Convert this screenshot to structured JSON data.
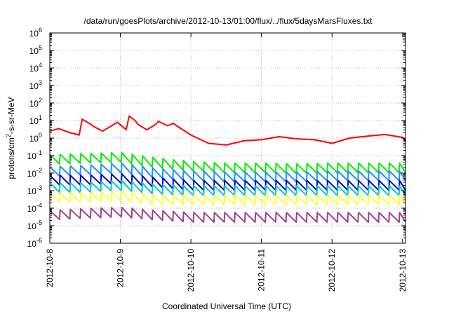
{
  "chart_data": {
    "type": "line",
    "title": "/data/run/goesPlots/archive/2012-10-13/01:00/flux/../flux/5daysMarsFluxes.txt",
    "xlabel": "Coordinated Universal Time (UTC)",
    "ylabel_base": "protons/cm",
    "ylabel_sup": "2",
    "ylabel_rest": "-s-sr-MeV",
    "y_scale": "log",
    "ylim": [
      1e-06,
      1000000.0
    ],
    "y_ticks": [
      {
        "base": "10",
        "exp": "-6"
      },
      {
        "base": "10",
        "exp": "-5"
      },
      {
        "base": "10",
        "exp": "-4"
      },
      {
        "base": "10",
        "exp": "-3"
      },
      {
        "base": "10",
        "exp": "-2"
      },
      {
        "base": "10",
        "exp": "-1"
      },
      {
        "base": "10",
        "exp": "0"
      },
      {
        "base": "10",
        "exp": "1"
      },
      {
        "base": "10",
        "exp": "2"
      },
      {
        "base": "10",
        "exp": "3"
      },
      {
        "base": "10",
        "exp": "4"
      },
      {
        "base": "10",
        "exp": "5"
      },
      {
        "base": "10",
        "exp": "6"
      }
    ],
    "xlim": [
      "2012-10-08",
      "2012-10-13 01:00"
    ],
    "x_ticks": [
      "2012-10-8",
      "2012-10-9",
      "2012-10-10",
      "2012-10-11",
      "2012-10-12",
      "2012-10-13"
    ],
    "grid": true,
    "series": [
      {
        "color": "#ff0000",
        "x": [
          "2012-10-08 00:00",
          "2012-10-08 03:00",
          "2012-10-08 07:00",
          "2012-10-08 10:00",
          "2012-10-08 11:00",
          "2012-10-08 14:00",
          "2012-10-08 15:00",
          "2012-10-08 18:00",
          "2012-10-08 21:00",
          "2012-10-08 23:00",
          "2012-10-09 02:00",
          "2012-10-09 03:00",
          "2012-10-09 05:00",
          "2012-10-09 06:00",
          "2012-10-09 09:00",
          "2012-10-09 12:00",
          "2012-10-09 13:00",
          "2012-10-09 16:00",
          "2012-10-09 18:00",
          "2012-10-09 20:00",
          "2012-10-10 00:00",
          "2012-10-10 06:00",
          "2012-10-10 12:00",
          "2012-10-10 18:00",
          "2012-10-11 00:00",
          "2012-10-11 06:00",
          "2012-10-11 12:00",
          "2012-10-11 18:00",
          "2012-10-12 00:00",
          "2012-10-12 06:00",
          "2012-10-12 12:00",
          "2012-10-12 18:00",
          "2012-10-13 00:00",
          "2012-10-13 01:00"
        ],
        "y": [
          2.5,
          3.5,
          2.0,
          1.5,
          12,
          6,
          4.5,
          2.5,
          5,
          8,
          3,
          18,
          10,
          6,
          3,
          6,
          9,
          5,
          7,
          4,
          1.5,
          0.5,
          0.4,
          0.7,
          0.8,
          1.2,
          0.9,
          0.8,
          0.5,
          1.0,
          1.3,
          1.6,
          1.1,
          0.7
        ]
      },
      {
        "color": "#00ee00",
        "x": [
          "2012-10-08 00:00",
          "2012-10-08 12:00",
          "2012-10-09 00:00",
          "2012-10-09 12:00",
          "2012-10-10 00:00",
          "2012-10-10 12:00",
          "2012-10-11 00:00",
          "2012-10-11 12:00",
          "2012-10-12 00:00",
          "2012-10-12 12:00",
          "2012-10-13 01:00"
        ],
        "y": [
          0.06,
          0.07,
          0.08,
          0.04,
          0.025,
          0.02,
          0.02,
          0.018,
          0.02,
          0.02,
          0.02
        ]
      },
      {
        "color": "#1e90ff",
        "x": [
          "2012-10-08 00:00",
          "2012-10-08 12:00",
          "2012-10-09 00:00",
          "2012-10-09 12:00",
          "2012-10-10 00:00",
          "2012-10-10 12:00",
          "2012-10-11 00:00",
          "2012-10-11 12:00",
          "2012-10-12 00:00",
          "2012-10-12 12:00",
          "2012-10-13 01:00"
        ],
        "y": [
          0.012,
          0.015,
          0.02,
          0.01,
          0.007,
          0.006,
          0.006,
          0.006,
          0.007,
          0.007,
          0.007
        ]
      },
      {
        "color": "#0000cc",
        "x": [
          "2012-10-08 00:00",
          "2012-10-08 12:00",
          "2012-10-09 00:00",
          "2012-10-09 12:00",
          "2012-10-10 00:00",
          "2012-10-10 12:00",
          "2012-10-11 00:00",
          "2012-10-11 12:00",
          "2012-10-12 00:00",
          "2012-10-12 12:00",
          "2012-10-13 01:00"
        ],
        "y": [
          0.004,
          0.004,
          0.005,
          0.003,
          0.002,
          0.002,
          0.002,
          0.002,
          0.002,
          0.002,
          0.002
        ]
      },
      {
        "color": "#00c8c8",
        "x": [
          "2012-10-08 00:00",
          "2012-10-08 12:00",
          "2012-10-09 00:00",
          "2012-10-09 12:00",
          "2012-10-10 00:00",
          "2012-10-10 12:00",
          "2012-10-11 00:00",
          "2012-10-11 12:00",
          "2012-10-12 00:00",
          "2012-10-12 12:00",
          "2012-10-13 01:00"
        ],
        "y": [
          0.0015,
          0.0015,
          0.002,
          0.0012,
          0.001,
          0.001,
          0.001,
          0.001,
          0.001,
          0.001,
          0.001
        ]
      },
      {
        "color": "#ffff33",
        "x": [
          "2012-10-08 00:00",
          "2012-10-08 12:00",
          "2012-10-09 00:00",
          "2012-10-09 12:00",
          "2012-10-10 00:00",
          "2012-10-10 12:00",
          "2012-10-11 00:00",
          "2012-10-11 12:00",
          "2012-10-12 00:00",
          "2012-10-12 12:00",
          "2012-10-13 01:00"
        ],
        "y": [
          0.0004,
          0.0004,
          0.0005,
          0.0003,
          0.0003,
          0.0003,
          0.0003,
          0.0003,
          0.0003,
          0.0003,
          0.0003
        ]
      },
      {
        "color": "#a0408a",
        "x": [
          "2012-10-08 00:00",
          "2012-10-08 12:00",
          "2012-10-09 00:00",
          "2012-10-09 12:00",
          "2012-10-10 00:00",
          "2012-10-10 12:00",
          "2012-10-11 00:00",
          "2012-10-11 12:00",
          "2012-10-12 00:00",
          "2012-10-12 12:00",
          "2012-10-13 01:00"
        ],
        "y": [
          4e-05,
          5e-05,
          6e-05,
          4e-05,
          3e-05,
          3e-05,
          3e-05,
          3e-05,
          3e-05,
          3e-05,
          3e-05
        ]
      }
    ]
  }
}
